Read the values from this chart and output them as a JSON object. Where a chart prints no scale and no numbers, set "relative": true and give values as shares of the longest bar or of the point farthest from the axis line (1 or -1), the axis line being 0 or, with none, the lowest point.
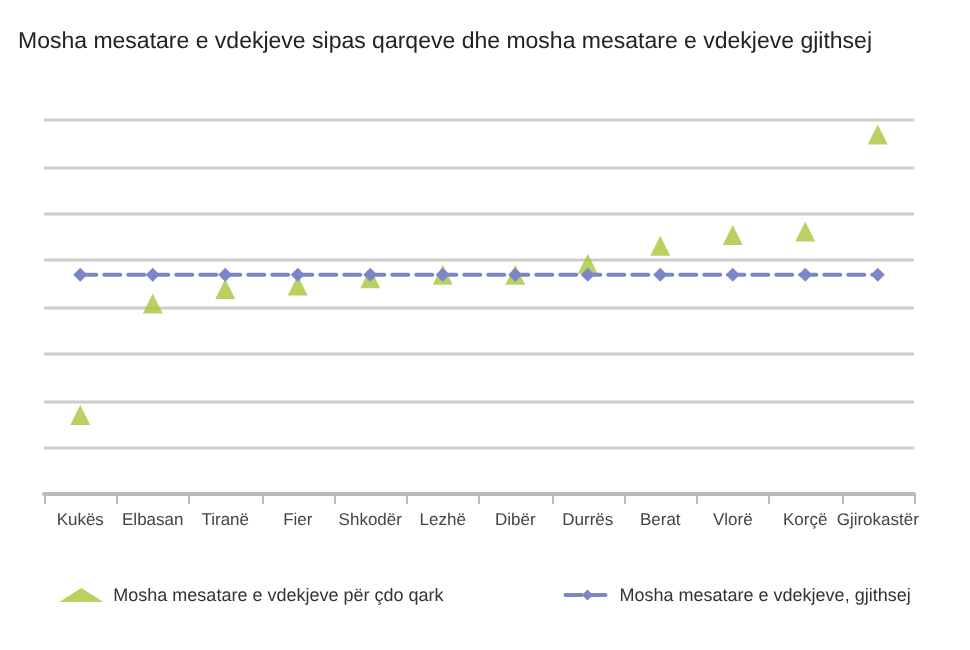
{
  "chart_data": {
    "type": "line",
    "title": "Mosha mesatare e vdekjeve sipas qarqeve dhe mosha mesatare e vdekjeve gjithsej",
    "relative": true,
    "grid": "y",
    "legend": "bottom",
    "categories": [
      "Kukës",
      "Elbasan",
      "Tiranë",
      "Fier",
      "Shkodër",
      "Lezhë",
      "Dibër",
      "Durrës",
      "Berat",
      "Vlorë",
      "Korçë",
      "Gjirokastër"
    ],
    "series": [
      {
        "name": "Mosha mesatare e vdekjeve për çdo qark",
        "type": "scatter",
        "marker": "triangle",
        "color": "#a8c63a",
        "values": [
          0.22,
          0.53,
          0.57,
          0.58,
          0.6,
          0.61,
          0.61,
          0.64,
          0.69,
          0.72,
          0.73,
          1
        ]
      },
      {
        "name": "Mosha mesatare e vdekjeve, gjithsej",
        "marker": "diamond",
        "line_style": "dashed",
        "color": "#7b86c9",
        "values": [
          0.61,
          0.61,
          0.61,
          0.61,
          0.61,
          0.61,
          0.61,
          0.61,
          0.61,
          0.61,
          0.61,
          0.61
        ]
      }
    ]
  }
}
